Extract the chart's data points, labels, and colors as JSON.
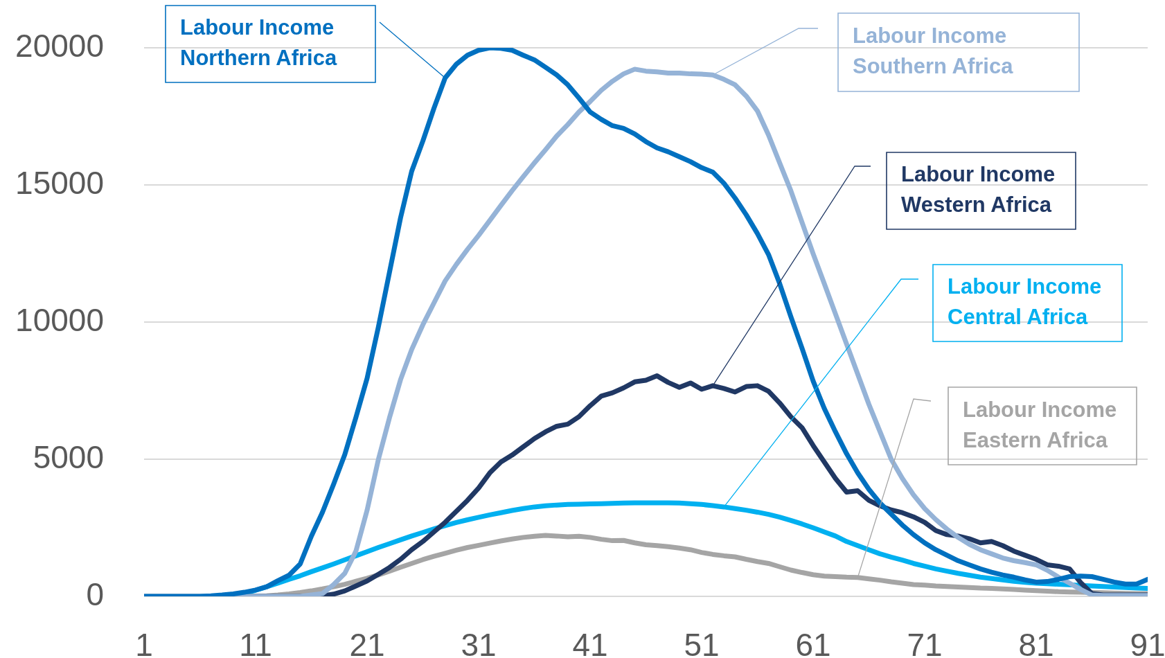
{
  "chart_data": {
    "type": "line",
    "x": [
      1,
      2,
      3,
      4,
      5,
      6,
      7,
      8,
      9,
      10,
      11,
      12,
      13,
      14,
      15,
      16,
      17,
      18,
      19,
      20,
      21,
      22,
      23,
      24,
      25,
      26,
      27,
      28,
      29,
      30,
      31,
      32,
      33,
      34,
      35,
      36,
      37,
      38,
      39,
      40,
      41,
      42,
      43,
      44,
      45,
      46,
      47,
      48,
      49,
      50,
      51,
      52,
      53,
      54,
      55,
      56,
      57,
      58,
      59,
      60,
      61,
      62,
      63,
      64,
      65,
      66,
      67,
      68,
      69,
      70,
      71,
      72,
      73,
      74,
      75,
      76,
      77,
      78,
      79,
      80,
      81,
      82,
      83,
      84,
      85,
      86,
      87,
      88,
      89,
      90,
      91
    ],
    "xlim": [
      1,
      91
    ],
    "xticks": [
      1,
      11,
      21,
      31,
      41,
      51,
      61,
      71,
      81,
      91
    ],
    "ylim": [
      0,
      20000
    ],
    "yticks": [
      0,
      5000,
      10000,
      15000,
      20000
    ],
    "grid": "y",
    "series": [
      {
        "name": "Labour Income Northern Africa",
        "color": "#0070c0",
        "values": [
          0,
          0,
          0,
          0,
          0,
          0,
          20,
          50,
          90,
          150,
          230,
          350,
          570,
          770,
          1180,
          2190,
          3070,
          4090,
          5170,
          6530,
          7950,
          9800,
          11800,
          13800,
          15500,
          16600,
          17800,
          18900,
          19400,
          19730,
          19910,
          20000,
          19980,
          19910,
          19730,
          19560,
          19290,
          19010,
          18650,
          18170,
          17660,
          17390,
          17160,
          17060,
          16860,
          16580,
          16350,
          16210,
          16030,
          15850,
          15630,
          15470,
          15060,
          14520,
          13910,
          13230,
          12460,
          11400,
          10200,
          9050,
          7850,
          6850,
          6000,
          5200,
          4500,
          3900,
          3400,
          3000,
          2600,
          2250,
          1950,
          1700,
          1500,
          1300,
          1150,
          1000,
          880,
          780,
          700,
          600,
          520,
          540,
          620,
          720,
          740,
          720,
          620,
          520,
          450,
          450,
          620
        ]
      },
      {
        "name": "Labour Income Southern Africa",
        "color": "#95b3d7",
        "values": [
          0,
          0,
          0,
          0,
          0,
          0,
          0,
          0,
          0,
          0,
          0,
          0,
          0,
          0,
          0,
          50,
          100,
          430,
          840,
          1650,
          3140,
          4970,
          6500,
          7900,
          9000,
          9900,
          10700,
          11500,
          12100,
          12650,
          13160,
          13700,
          14250,
          14790,
          15300,
          15800,
          16280,
          16780,
          17200,
          17660,
          18040,
          18450,
          18780,
          19050,
          19220,
          19150,
          19120,
          19080,
          19080,
          19050,
          19040,
          19010,
          18850,
          18650,
          18240,
          17700,
          16820,
          15800,
          14790,
          13640,
          12490,
          11400,
          10300,
          9200,
          8100,
          7000,
          6000,
          5000,
          4300,
          3700,
          3200,
          2800,
          2450,
          2150,
          1900,
          1700,
          1550,
          1400,
          1300,
          1230,
          1150,
          950,
          700,
          480,
          250,
          50,
          30,
          30,
          30,
          30,
          30
        ]
      },
      {
        "name": "Labour Income Western Africa",
        "color": "#203864",
        "values": [
          null,
          null,
          null,
          null,
          null,
          null,
          null,
          null,
          0,
          0,
          0,
          0,
          0,
          0,
          0,
          0,
          20,
          80,
          200,
          380,
          560,
          800,
          1050,
          1350,
          1700,
          2000,
          2350,
          2700,
          3100,
          3500,
          3950,
          4500,
          4900,
          5150,
          5450,
          5750,
          6000,
          6200,
          6280,
          6550,
          6950,
          7300,
          7420,
          7600,
          7820,
          7880,
          8040,
          7800,
          7620,
          7780,
          7550,
          7680,
          7580,
          7450,
          7650,
          7680,
          7480,
          7050,
          6550,
          6150,
          5500,
          4900,
          4300,
          3800,
          3850,
          3500,
          3300,
          3150,
          3050,
          2900,
          2700,
          2400,
          2250,
          2200,
          2100,
          1950,
          2000,
          1850,
          1650,
          1500,
          1350,
          1150,
          1100,
          1000,
          500,
          100,
          50,
          50,
          50,
          50,
          50
        ]
      },
      {
        "name": "Labour Income Central Africa",
        "color": "#00b0f0",
        "values": [
          null,
          null,
          null,
          null,
          null,
          null,
          null,
          null,
          50,
          120,
          220,
          350,
          480,
          620,
          750,
          900,
          1040,
          1180,
          1330,
          1480,
          1630,
          1780,
          1920,
          2060,
          2200,
          2330,
          2460,
          2580,
          2690,
          2790,
          2880,
          2970,
          3050,
          3130,
          3200,
          3260,
          3300,
          3330,
          3350,
          3360,
          3370,
          3380,
          3390,
          3400,
          3410,
          3410,
          3410,
          3410,
          3400,
          3380,
          3350,
          3310,
          3260,
          3200,
          3140,
          3070,
          2990,
          2890,
          2770,
          2640,
          2500,
          2350,
          2200,
          2000,
          1850,
          1700,
          1550,
          1430,
          1320,
          1200,
          1100,
          1000,
          920,
          840,
          770,
          700,
          650,
          600,
          550,
          510,
          480,
          460,
          440,
          420,
          400,
          380,
          360,
          340,
          320,
          300,
          290
        ]
      },
      {
        "name": "Labour Income Eastern Africa",
        "color": "#a5a5a5",
        "values": [
          0,
          0,
          0,
          0,
          0,
          0,
          0,
          0,
          0,
          0,
          0,
          20,
          50,
          90,
          140,
          200,
          270,
          350,
          440,
          550,
          660,
          780,
          920,
          1060,
          1200,
          1340,
          1460,
          1570,
          1680,
          1780,
          1860,
          1940,
          2020,
          2090,
          2150,
          2190,
          2220,
          2200,
          2170,
          2190,
          2150,
          2080,
          2030,
          2040,
          1950,
          1880,
          1850,
          1810,
          1760,
          1700,
          1600,
          1530,
          1480,
          1440,
          1350,
          1270,
          1200,
          1080,
          960,
          870,
          790,
          740,
          720,
          700,
          690,
          640,
          590,
          530,
          480,
          430,
          410,
          380,
          360,
          340,
          320,
          300,
          290,
          270,
          250,
          230,
          210,
          190,
          170,
          160,
          150,
          140,
          130,
          120,
          110,
          100,
          100
        ]
      }
    ]
  }
}
